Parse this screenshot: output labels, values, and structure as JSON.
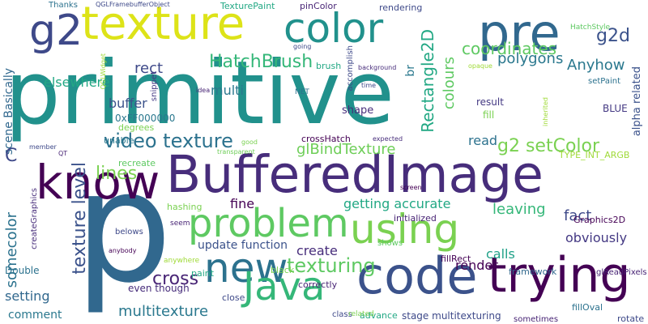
{
  "words": [
    {
      "text": "primitive",
      "color": "#21918c",
      "vertical": false
    },
    {
      "text": "p",
      "color": "#31688e",
      "vertical": false
    },
    {
      "text": "BufferedImage",
      "color": "#472d7b",
      "vertical": false
    },
    {
      "text": "texture",
      "color": "#dde318",
      "vertical": false
    },
    {
      "text": "code",
      "color": "#3b528b",
      "vertical": false
    },
    {
      "text": "trying",
      "color": "#440154",
      "vertical": false
    },
    {
      "text": "know",
      "color": "#440154",
      "vertical": true
    },
    {
      "text": "problem",
      "color": "#5ec962",
      "vertical": false
    },
    {
      "text": "using",
      "color": "#7ad151",
      "vertical": false
    },
    {
      "text": "new",
      "color": "#2c728e",
      "vertical": false
    },
    {
      "text": "Java",
      "color": "#35b779",
      "vertical": false
    },
    {
      "text": "pre",
      "color": "#31688e",
      "vertical": false
    },
    {
      "text": "color",
      "color": "#21918c",
      "vertical": false
    },
    {
      "text": "g2",
      "color": "#3e4989",
      "vertical": false
    },
    {
      "text": "video texture",
      "color": "#2c728e",
      "vertical": false
    },
    {
      "text": "texture level",
      "color": "#3b528b",
      "vertical": true
    },
    {
      "text": "HatchBrush",
      "color": "#35b779",
      "vertical": false
    },
    {
      "text": "texturing",
      "color": "#5ec962",
      "vertical": false
    },
    {
      "text": "coordinates",
      "color": "#5ec962",
      "vertical": false
    },
    {
      "text": "glBindTexture",
      "color": "#6ece58",
      "vertical": false
    },
    {
      "text": "g2 setColor",
      "color": "#7ad151",
      "vertical": false
    },
    {
      "text": "Rectangle2D",
      "color": "#22a884",
      "vertical": true
    },
    {
      "text": "colours",
      "color": "#5ec962",
      "vertical": true
    },
    {
      "text": "polygons",
      "color": "#2a788e",
      "vertical": false
    },
    {
      "text": "Anyhow",
      "color": "#2a788e",
      "vertical": false
    },
    {
      "text": "g2d",
      "color": "#3b528b",
      "vertical": false
    },
    {
      "text": "multitexture",
      "color": "#2a788e",
      "vertical": false
    },
    {
      "text": "cross",
      "color": "#482475",
      "vertical": false
    },
    {
      "text": "lines",
      "color": "#7ad151",
      "vertical": false
    },
    {
      "text": "somecolor",
      "color": "#2c728e",
      "vertical": true
    },
    {
      "text": "getting accurate",
      "color": "#22a884",
      "vertical": false
    },
    {
      "text": "leaving",
      "color": "#35b779",
      "vertical": false
    },
    {
      "text": "fact",
      "color": "#3e4989",
      "vertical": false
    },
    {
      "text": "obviously",
      "color": "#443983",
      "vertical": false
    },
    {
      "text": "render",
      "color": "#440154",
      "vertical": false
    },
    {
      "text": "calls",
      "color": "#1fa188",
      "vertical": false
    },
    {
      "text": "create",
      "color": "#472d7b",
      "vertical": false
    },
    {
      "text": "update function",
      "color": "#3b528b",
      "vertical": false
    },
    {
      "text": "fine",
      "color": "#440154",
      "vertical": false
    },
    {
      "text": "rect",
      "color": "#3e4989",
      "vertical": false
    },
    {
      "text": "multi",
      "color": "#2a788e",
      "vertical": false
    },
    {
      "text": "elsewhere",
      "color": "#22a884",
      "vertical": false
    },
    {
      "text": "buffer",
      "color": "#3b528b",
      "vertical": false
    },
    {
      "text": "0xFF000000",
      "color": "#2a788e",
      "vertical": false
    },
    {
      "text": "degrees",
      "color": "#7ad151",
      "vertical": false
    },
    {
      "text": "scene Basically",
      "color": "#31688e",
      "vertical": true
    },
    {
      "text": "C",
      "color": "#3e4989",
      "vertical": false
    },
    {
      "text": "setting",
      "color": "#31688e",
      "vertical": false
    },
    {
      "text": "comment",
      "color": "#2a788e",
      "vertical": false
    },
    {
      "text": "Double",
      "color": "#2c728e",
      "vertical": false
    },
    {
      "text": "even though",
      "color": "#472d7b",
      "vertical": false
    },
    {
      "text": "correctly",
      "color": "#482475",
      "vertical": false
    },
    {
      "text": "stage multitexturing",
      "color": "#3e4989",
      "vertical": false
    },
    {
      "text": "read",
      "color": "#2c728e",
      "vertical": false
    },
    {
      "text": "shape",
      "color": "#472d7b",
      "vertical": false
    },
    {
      "text": "result",
      "color": "#443983",
      "vertical": false
    },
    {
      "text": "fill",
      "color": "#7ad151",
      "vertical": false
    },
    {
      "text": "BLUE",
      "color": "#443983",
      "vertical": false
    },
    {
      "text": "alpha related",
      "color": "#3b528b",
      "vertical": true
    },
    {
      "text": "TYPE_INT_ARGB",
      "color": "#a0da39",
      "vertical": false
    },
    {
      "text": "crossHatch",
      "color": "#440154",
      "vertical": false
    },
    {
      "text": "initialized",
      "color": "#482475",
      "vertical": false
    },
    {
      "text": "Graphics2D",
      "color": "#440154",
      "vertical": false
    },
    {
      "text": "fillRect",
      "color": "#440154",
      "vertical": false
    },
    {
      "text": "framework",
      "color": "#31688e",
      "vertical": false
    },
    {
      "text": "glReadPixels",
      "color": "#482475",
      "vertical": false
    },
    {
      "text": "fillOval",
      "color": "#2c728e",
      "vertical": false
    },
    {
      "text": "rotate",
      "color": "#3e4989",
      "vertical": false
    },
    {
      "text": "sometimes",
      "color": "#482475",
      "vertical": false
    },
    {
      "text": "advance",
      "color": "#22a884",
      "vertical": false
    },
    {
      "text": "class",
      "color": "#3e4989",
      "vertical": false
    },
    {
      "text": "related",
      "color": "#7ad151",
      "vertical": false
    },
    {
      "text": "close",
      "color": "#3e4989",
      "vertical": false
    },
    {
      "text": "paint",
      "color": "#22a884",
      "vertical": false
    },
    {
      "text": "black",
      "color": "#7ad151",
      "vertical": false
    },
    {
      "text": "anywhere",
      "color": "#a0da39",
      "vertical": false
    },
    {
      "text": "shows",
      "color": "#5ec962",
      "vertical": false
    },
    {
      "text": "hashing",
      "color": "#7ad151",
      "vertical": false
    },
    {
      "text": "seem",
      "color": "#482475",
      "vertical": false
    },
    {
      "text": "belows",
      "color": "#3e4989",
      "vertical": false
    },
    {
      "text": "anybody",
      "color": "#440154",
      "vertical": false
    },
    {
      "text": "recreate",
      "color": "#5ec962",
      "vertical": false
    },
    {
      "text": "unable",
      "color": "#2a788e",
      "vertical": false
    },
    {
      "text": "transparent",
      "color": "#6ece58",
      "vertical": false
    },
    {
      "text": "good",
      "color": "#7ad151",
      "vertical": false
    },
    {
      "text": "member",
      "color": "#3e4989",
      "vertical": false
    },
    {
      "text": "QT",
      "color": "#482475",
      "vertical": false
    },
    {
      "text": "createGraphics",
      "color": "#472d7b",
      "vertical": true
    },
    {
      "text": "screen",
      "color": "#440154",
      "vertical": false
    },
    {
      "text": "expected",
      "color": "#472d7b",
      "vertical": false
    },
    {
      "text": "snippet",
      "color": "#443983",
      "vertical": true
    },
    {
      "text": "idea",
      "color": "#482475",
      "vertical": false
    },
    {
      "text": "NET",
      "color": "#2c728e",
      "vertical": false
    },
    {
      "text": "accomplish",
      "color": "#3e4989",
      "vertical": true
    },
    {
      "text": "time",
      "color": "#3e4989",
      "vertical": false
    },
    {
      "text": "inherited",
      "color": "#a0da39",
      "vertical": true
    },
    {
      "text": "setPaint",
      "color": "#2c728e",
      "vertical": false
    },
    {
      "text": "opaque",
      "color": "#a0da39",
      "vertical": false
    },
    {
      "text": "brush",
      "color": "#22a884",
      "vertical": false
    },
    {
      "text": "background",
      "color": "#472d7b",
      "vertical": false
    },
    {
      "text": "going",
      "color": "#3e4989",
      "vertical": false
    },
    {
      "text": "br",
      "color": "#2a788e",
      "vertical": true
    },
    {
      "text": "rendering",
      "color": "#3e4989",
      "vertical": false
    },
    {
      "text": "pinColor",
      "color": "#482475",
      "vertical": false
    },
    {
      "text": "TexturePaint",
      "color": "#22a884",
      "vertical": false
    },
    {
      "text": "QGLFramebufferObject",
      "color": "#3e4989",
      "vertical": false
    },
    {
      "text": "Thanks",
      "color": "#2c728e",
      "vertical": false
    },
    {
      "text": "QGLWidget",
      "color": "#a0da39",
      "vertical": true
    },
    {
      "text": "HatchStyle",
      "color": "#5ec962",
      "vertical": false
    }
  ]
}
